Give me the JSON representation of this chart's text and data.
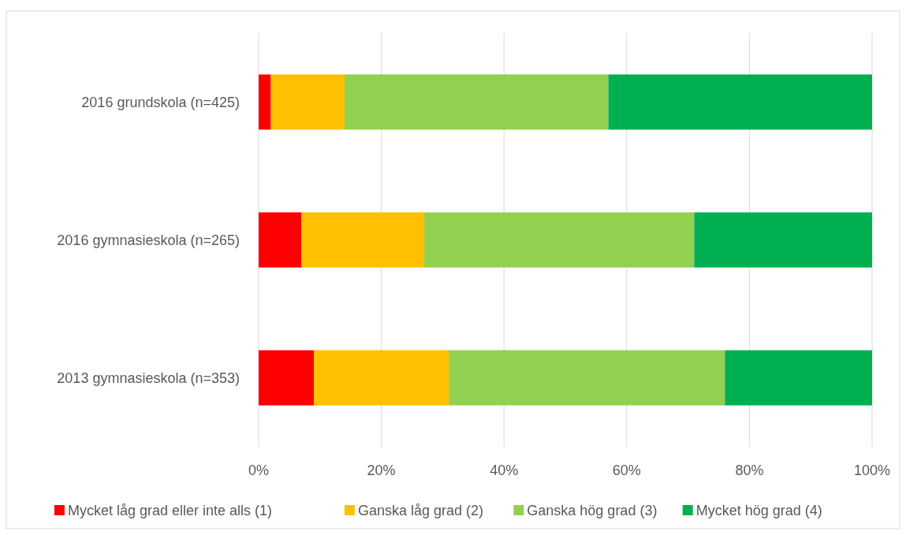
{
  "chart_data": {
    "type": "bar",
    "orientation": "horizontal",
    "stacked": true,
    "categories": [
      "2016 grundskola (n=425)",
      "2016 gymnasieskola (n=265)",
      "2013 gymnasieskola (n=353)"
    ],
    "series": [
      {
        "name": "Mycket låg grad eller inte alls (1)",
        "color": "#ff0000",
        "values": [
          2,
          7,
          9
        ]
      },
      {
        "name": "Ganska låg grad (2)",
        "color": "#ffc000",
        "values": [
          12,
          20,
          22
        ]
      },
      {
        "name": "Ganska hög grad (3)",
        "color": "#92d050",
        "values": [
          43,
          44,
          45
        ]
      },
      {
        "name": "Mycket hög grad (4)",
        "color": "#00b050",
        "values": [
          43,
          29,
          24
        ]
      }
    ],
    "xlim": [
      0,
      100
    ],
    "xticks": [
      {
        "value": 0,
        "label": "0%"
      },
      {
        "value": 20,
        "label": "20%"
      },
      {
        "value": 40,
        "label": "40%"
      },
      {
        "value": 60,
        "label": "60%"
      },
      {
        "value": 80,
        "label": "80%"
      },
      {
        "value": 100,
        "label": "100%"
      }
    ],
    "grid": "x",
    "legend": "bottom"
  }
}
